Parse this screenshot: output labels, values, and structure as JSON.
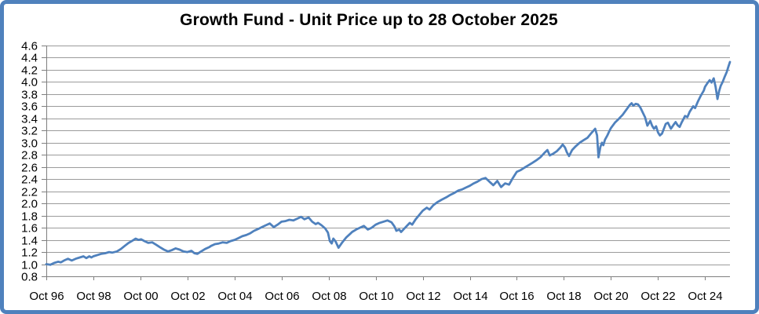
{
  "chart": {
    "title": "Growth Fund - Unit Price up to 28 October 2025",
    "colors": {
      "frame_border": "#4f81bd",
      "series_line": "#4f81bd",
      "gridline": "#9b9b9b",
      "axis": "#7f7f7f",
      "text": "#000000",
      "background": "#ffffff"
    }
  },
  "chart_data": {
    "type": "line",
    "title": "Growth Fund - Unit Price up to 28 October 2025",
    "xlabel": "",
    "ylabel": "",
    "legend": false,
    "grid": true,
    "y_min": 0.8,
    "y_max": 4.6,
    "y_step": 0.2,
    "x_min": 1996.75,
    "x_max": 2025.81,
    "y_tick_labels": [
      "4.6",
      "4.4",
      "4.2",
      "4.0",
      "3.8",
      "3.6",
      "3.4",
      "3.2",
      "3.0",
      "2.8",
      "2.6",
      "2.4",
      "2.2",
      "2.0",
      "1.8",
      "1.6",
      "1.4",
      "1.2",
      "1.0",
      "0.8"
    ],
    "x_ticks": [
      {
        "label": "Oct 96",
        "t": 1996.75
      },
      {
        "label": "Oct 98",
        "t": 1998.75
      },
      {
        "label": "Oct 00",
        "t": 2000.75
      },
      {
        "label": "Oct 02",
        "t": 2002.75
      },
      {
        "label": "Oct 04",
        "t": 2004.75
      },
      {
        "label": "Oct 06",
        "t": 2006.75
      },
      {
        "label": "Oct 08",
        "t": 2008.75
      },
      {
        "label": "Oct 10",
        "t": 2010.75
      },
      {
        "label": "Oct 12",
        "t": 2012.75
      },
      {
        "label": "Oct 14",
        "t": 2014.75
      },
      {
        "label": "Oct 16",
        "t": 2016.75
      },
      {
        "label": "Oct 18",
        "t": 2018.75
      },
      {
        "label": "Oct 20",
        "t": 2020.75
      },
      {
        "label": "Oct 22",
        "t": 2022.75
      },
      {
        "label": "Oct 24",
        "t": 2024.75
      }
    ],
    "series": [
      {
        "name": "Unit Price",
        "points": [
          [
            1996.75,
            1.0
          ],
          [
            1996.92,
            0.99
          ],
          [
            1997.08,
            1.02
          ],
          [
            1997.25,
            1.04
          ],
          [
            1997.37,
            1.03
          ],
          [
            1997.5,
            1.06
          ],
          [
            1997.67,
            1.09
          ],
          [
            1997.83,
            1.06
          ],
          [
            1998.0,
            1.09
          ],
          [
            1998.17,
            1.11
          ],
          [
            1998.33,
            1.13
          ],
          [
            1998.45,
            1.1
          ],
          [
            1998.58,
            1.13
          ],
          [
            1998.67,
            1.11
          ],
          [
            1998.75,
            1.13
          ],
          [
            1998.92,
            1.15
          ],
          [
            1999.08,
            1.17
          ],
          [
            1999.25,
            1.18
          ],
          [
            1999.42,
            1.2
          ],
          [
            1999.55,
            1.19
          ],
          [
            1999.75,
            1.21
          ],
          [
            1999.92,
            1.25
          ],
          [
            2000.08,
            1.3
          ],
          [
            2000.25,
            1.35
          ],
          [
            2000.42,
            1.39
          ],
          [
            2000.55,
            1.42
          ],
          [
            2000.67,
            1.4
          ],
          [
            2000.78,
            1.41
          ],
          [
            2000.92,
            1.38
          ],
          [
            2001.08,
            1.35
          ],
          [
            2001.25,
            1.36
          ],
          [
            2001.42,
            1.32
          ],
          [
            2001.58,
            1.28
          ],
          [
            2001.75,
            1.24
          ],
          [
            2001.92,
            1.21
          ],
          [
            2002.08,
            1.23
          ],
          [
            2002.25,
            1.26
          ],
          [
            2002.42,
            1.24
          ],
          [
            2002.58,
            1.21
          ],
          [
            2002.75,
            1.2
          ],
          [
            2002.92,
            1.22
          ],
          [
            2003.05,
            1.18
          ],
          [
            2003.17,
            1.17
          ],
          [
            2003.33,
            1.21
          ],
          [
            2003.5,
            1.25
          ],
          [
            2003.67,
            1.28
          ],
          [
            2003.75,
            1.3
          ],
          [
            2003.92,
            1.33
          ],
          [
            2004.08,
            1.34
          ],
          [
            2004.25,
            1.36
          ],
          [
            2004.42,
            1.35
          ],
          [
            2004.58,
            1.38
          ],
          [
            2004.75,
            1.4
          ],
          [
            2004.92,
            1.43
          ],
          [
            2005.08,
            1.46
          ],
          [
            2005.25,
            1.48
          ],
          [
            2005.42,
            1.51
          ],
          [
            2005.58,
            1.55
          ],
          [
            2005.75,
            1.58
          ],
          [
            2005.92,
            1.61
          ],
          [
            2006.08,
            1.64
          ],
          [
            2006.25,
            1.67
          ],
          [
            2006.42,
            1.61
          ],
          [
            2006.58,
            1.65
          ],
          [
            2006.75,
            1.7
          ],
          [
            2006.92,
            1.71
          ],
          [
            2007.08,
            1.73
          ],
          [
            2007.25,
            1.72
          ],
          [
            2007.42,
            1.75
          ],
          [
            2007.58,
            1.78
          ],
          [
            2007.72,
            1.74
          ],
          [
            2007.9,
            1.77
          ],
          [
            2008.05,
            1.7
          ],
          [
            2008.2,
            1.66
          ],
          [
            2008.3,
            1.68
          ],
          [
            2008.45,
            1.64
          ],
          [
            2008.6,
            1.59
          ],
          [
            2008.72,
            1.52
          ],
          [
            2008.8,
            1.38
          ],
          [
            2008.88,
            1.34
          ],
          [
            2008.95,
            1.42
          ],
          [
            2009.05,
            1.37
          ],
          [
            2009.17,
            1.27
          ],
          [
            2009.33,
            1.36
          ],
          [
            2009.5,
            1.44
          ],
          [
            2009.67,
            1.5
          ],
          [
            2009.75,
            1.53
          ],
          [
            2009.92,
            1.57
          ],
          [
            2010.08,
            1.6
          ],
          [
            2010.25,
            1.63
          ],
          [
            2010.42,
            1.57
          ],
          [
            2010.58,
            1.6
          ],
          [
            2010.75,
            1.65
          ],
          [
            2010.92,
            1.68
          ],
          [
            2011.08,
            1.7
          ],
          [
            2011.25,
            1.72
          ],
          [
            2011.42,
            1.69
          ],
          [
            2011.55,
            1.62
          ],
          [
            2011.63,
            1.55
          ],
          [
            2011.75,
            1.57
          ],
          [
            2011.83,
            1.53
          ],
          [
            2011.95,
            1.58
          ],
          [
            2012.1,
            1.64
          ],
          [
            2012.2,
            1.68
          ],
          [
            2012.3,
            1.65
          ],
          [
            2012.45,
            1.74
          ],
          [
            2012.62,
            1.82
          ],
          [
            2012.75,
            1.88
          ],
          [
            2012.92,
            1.93
          ],
          [
            2013.04,
            1.9
          ],
          [
            2013.2,
            1.97
          ],
          [
            2013.37,
            2.02
          ],
          [
            2013.55,
            2.06
          ],
          [
            2013.75,
            2.1
          ],
          [
            2013.92,
            2.14
          ],
          [
            2014.08,
            2.17
          ],
          [
            2014.25,
            2.21
          ],
          [
            2014.42,
            2.23
          ],
          [
            2014.58,
            2.26
          ],
          [
            2014.75,
            2.29
          ],
          [
            2014.92,
            2.33
          ],
          [
            2015.08,
            2.36
          ],
          [
            2015.25,
            2.4
          ],
          [
            2015.42,
            2.42
          ],
          [
            2015.58,
            2.36
          ],
          [
            2015.75,
            2.3
          ],
          [
            2015.92,
            2.37
          ],
          [
            2016.08,
            2.27
          ],
          [
            2016.25,
            2.33
          ],
          [
            2016.42,
            2.31
          ],
          [
            2016.58,
            2.42
          ],
          [
            2016.75,
            2.52
          ],
          [
            2016.92,
            2.55
          ],
          [
            2017.08,
            2.59
          ],
          [
            2017.25,
            2.63
          ],
          [
            2017.42,
            2.67
          ],
          [
            2017.58,
            2.71
          ],
          [
            2017.75,
            2.76
          ],
          [
            2017.92,
            2.83
          ],
          [
            2018.05,
            2.88
          ],
          [
            2018.15,
            2.79
          ],
          [
            2018.3,
            2.82
          ],
          [
            2018.45,
            2.86
          ],
          [
            2018.6,
            2.92
          ],
          [
            2018.7,
            2.97
          ],
          [
            2018.8,
            2.92
          ],
          [
            2018.88,
            2.84
          ],
          [
            2018.97,
            2.78
          ],
          [
            2019.1,
            2.88
          ],
          [
            2019.25,
            2.94
          ],
          [
            2019.42,
            3.0
          ],
          [
            2019.58,
            3.04
          ],
          [
            2019.75,
            3.08
          ],
          [
            2019.92,
            3.16
          ],
          [
            2020.08,
            3.23
          ],
          [
            2020.16,
            3.12
          ],
          [
            2020.22,
            2.76
          ],
          [
            2020.3,
            2.93
          ],
          [
            2020.37,
            3.0
          ],
          [
            2020.43,
            2.96
          ],
          [
            2020.5,
            3.05
          ],
          [
            2020.6,
            3.12
          ],
          [
            2020.67,
            3.18
          ],
          [
            2020.75,
            3.24
          ],
          [
            2020.92,
            3.33
          ],
          [
            2021.08,
            3.39
          ],
          [
            2021.25,
            3.46
          ],
          [
            2021.42,
            3.55
          ],
          [
            2021.55,
            3.62
          ],
          [
            2021.63,
            3.65
          ],
          [
            2021.7,
            3.61
          ],
          [
            2021.8,
            3.64
          ],
          [
            2021.9,
            3.63
          ],
          [
            2022.0,
            3.58
          ],
          [
            2022.1,
            3.5
          ],
          [
            2022.2,
            3.42
          ],
          [
            2022.3,
            3.28
          ],
          [
            2022.42,
            3.36
          ],
          [
            2022.5,
            3.28
          ],
          [
            2022.58,
            3.23
          ],
          [
            2022.67,
            3.27
          ],
          [
            2022.75,
            3.17
          ],
          [
            2022.83,
            3.12
          ],
          [
            2022.92,
            3.15
          ],
          [
            2023.0,
            3.23
          ],
          [
            2023.08,
            3.31
          ],
          [
            2023.17,
            3.33
          ],
          [
            2023.3,
            3.23
          ],
          [
            2023.42,
            3.3
          ],
          [
            2023.5,
            3.34
          ],
          [
            2023.58,
            3.29
          ],
          [
            2023.67,
            3.26
          ],
          [
            2023.75,
            3.33
          ],
          [
            2023.9,
            3.44
          ],
          [
            2024.0,
            3.42
          ],
          [
            2024.1,
            3.51
          ],
          [
            2024.25,
            3.6
          ],
          [
            2024.33,
            3.57
          ],
          [
            2024.45,
            3.68
          ],
          [
            2024.58,
            3.78
          ],
          [
            2024.7,
            3.86
          ],
          [
            2024.75,
            3.92
          ],
          [
            2024.85,
            3.98
          ],
          [
            2024.95,
            4.03
          ],
          [
            2025.03,
            3.99
          ],
          [
            2025.12,
            4.06
          ],
          [
            2025.2,
            3.92
          ],
          [
            2025.28,
            3.72
          ],
          [
            2025.35,
            3.85
          ],
          [
            2025.42,
            3.94
          ],
          [
            2025.5,
            4.0
          ],
          [
            2025.58,
            4.08
          ],
          [
            2025.67,
            4.16
          ],
          [
            2025.75,
            4.26
          ],
          [
            2025.81,
            4.33
          ]
        ]
      }
    ]
  }
}
